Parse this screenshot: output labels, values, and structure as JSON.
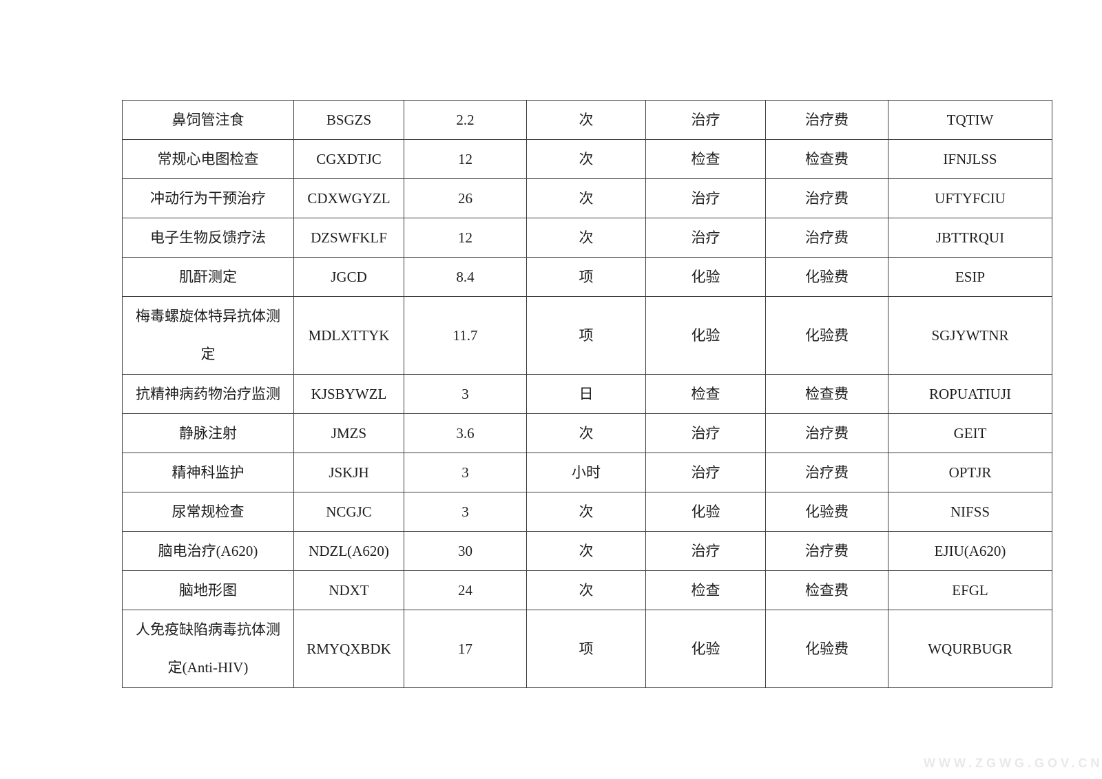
{
  "table": {
    "rows": [
      {
        "name": "鼻饲管注食",
        "code": "BSGZS",
        "value": "2.2",
        "unit": "次",
        "category": "治疗",
        "fee": "治疗费",
        "code2": "TQTIW"
      },
      {
        "name": "常规心电图检查",
        "code": "CGXDTJC",
        "value": "12",
        "unit": "次",
        "category": "检查",
        "fee": "检查费",
        "code2": "IFNJLSS"
      },
      {
        "name": "冲动行为干预治疗",
        "code": "CDXWGYZL",
        "value": "26",
        "unit": "次",
        "category": "治疗",
        "fee": "治疗费",
        "code2": "UFTYFCIU"
      },
      {
        "name": "电子生物反馈疗法",
        "code": "DZSWFKLF",
        "value": "12",
        "unit": "次",
        "category": "治疗",
        "fee": "治疗费",
        "code2": "JBTTRQUI"
      },
      {
        "name": "肌酐测定",
        "code": "JGCD",
        "value": "8.4",
        "unit": "项",
        "category": "化验",
        "fee": "化验费",
        "code2": "ESIP"
      },
      {
        "name": "梅毒螺旋体特异抗体测定",
        "code": "MDLXTTYK",
        "value": "11.7",
        "unit": "项",
        "category": "化验",
        "fee": "化验费",
        "code2": "SGJYWTNR"
      },
      {
        "name": "抗精神病药物治疗监测",
        "code": "KJSBYWZL",
        "value": "3",
        "unit": "日",
        "category": "检查",
        "fee": "检查费",
        "code2": "ROPUATIUJI"
      },
      {
        "name": "静脉注射",
        "code": "JMZS",
        "value": "3.6",
        "unit": "次",
        "category": "治疗",
        "fee": "治疗费",
        "code2": "GEIT"
      },
      {
        "name": "精神科监护",
        "code": "JSKJH",
        "value": "3",
        "unit": "小时",
        "category": "治疗",
        "fee": "治疗费",
        "code2": "OPTJR"
      },
      {
        "name": "尿常规检查",
        "code": "NCGJC",
        "value": "3",
        "unit": "次",
        "category": "化验",
        "fee": "化验费",
        "code2": "NIFSS"
      },
      {
        "name": "脑电治疗(A620)",
        "code": "NDZL(A620)",
        "value": "30",
        "unit": "次",
        "category": "治疗",
        "fee": "治疗费",
        "code2": "EJIU(A620)"
      },
      {
        "name": "脑地形图",
        "code": "NDXT",
        "value": "24",
        "unit": "次",
        "category": "检查",
        "fee": "检查费",
        "code2": "EFGL"
      },
      {
        "name": "人免疫缺陷病毒抗体测定(Anti-HIV)",
        "code": "RMYQXBDK",
        "value": "17",
        "unit": "项",
        "category": "化验",
        "fee": "化验费",
        "code2": "WQURBUGR"
      }
    ]
  },
  "watermark": {
    "text": "WWW.ZGWG.GOV.CN"
  }
}
